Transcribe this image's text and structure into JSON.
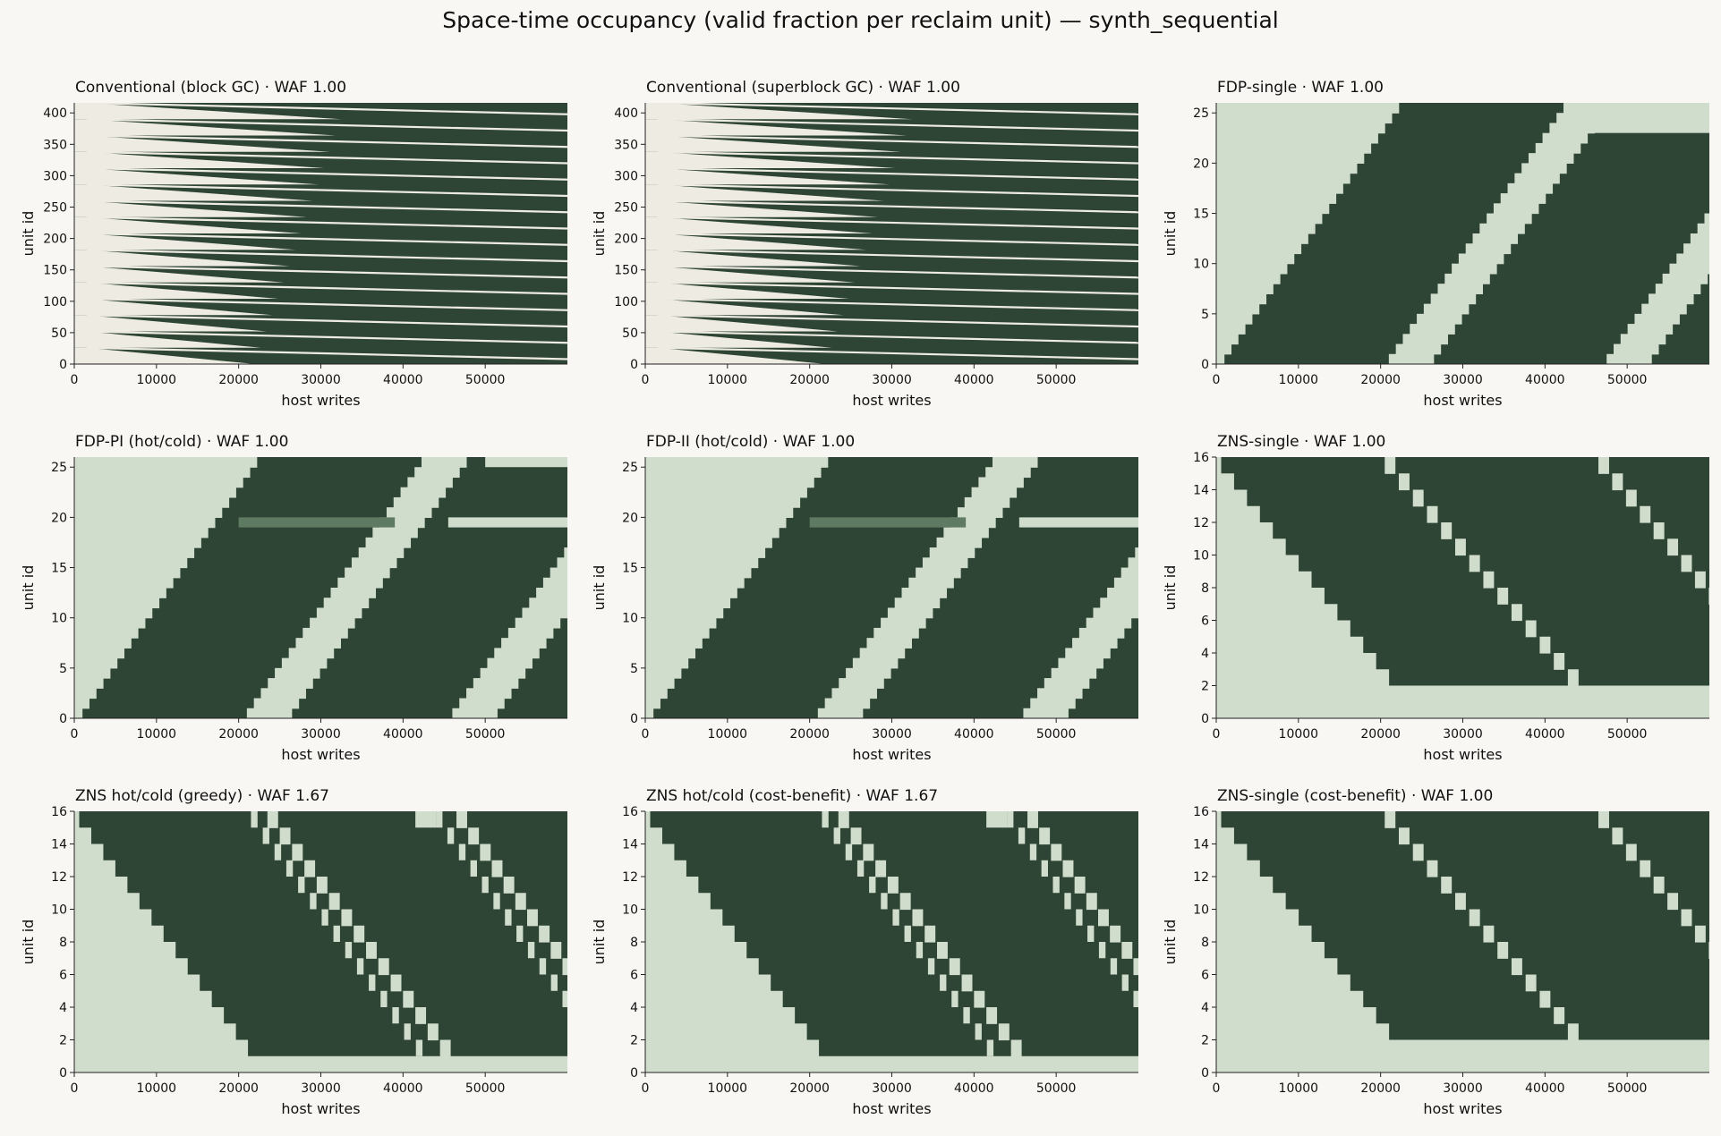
{
  "suptitle": "Space-time occupancy (valid fraction per reclaim unit) — synth_sequential",
  "colors": {
    "background": "#f8f7f3",
    "full": "#2e4535",
    "empty_light": "#d0dccc",
    "empty_cream": "#eeebe2",
    "partial": "#5f7a62"
  },
  "chart_data": [
    {
      "type": "heatmap",
      "title": "Conventional (block GC) · WAF 1.00",
      "pattern": "conventional",
      "xlabel": "host writes",
      "ylabel": "unit id",
      "xlim": [
        0,
        60000
      ],
      "ylim": [
        0,
        416
      ],
      "xticks": [
        0,
        10000,
        20000,
        30000,
        40000,
        50000
      ],
      "yticks": [
        0,
        50,
        100,
        150,
        200,
        250,
        300,
        350,
        400
      ]
    },
    {
      "type": "heatmap",
      "title": "Conventional (superblock GC) · WAF 1.00",
      "pattern": "conventional",
      "xlabel": "host writes",
      "ylabel": "unit id",
      "xlim": [
        0,
        60000
      ],
      "ylim": [
        0,
        416
      ],
      "xticks": [
        0,
        10000,
        20000,
        30000,
        40000,
        50000
      ],
      "yticks": [
        0,
        50,
        100,
        150,
        200,
        250,
        300,
        350,
        400
      ]
    },
    {
      "type": "heatmap",
      "title": "FDP-single · WAF 1.00",
      "pattern": "fdp",
      "xlabel": "host writes",
      "ylabel": "unit id",
      "xlim": [
        0,
        60000
      ],
      "ylim": [
        0,
        26
      ],
      "xticks": [
        0,
        10000,
        20000,
        30000,
        40000,
        50000
      ],
      "yticks": [
        0,
        5,
        10,
        15,
        20,
        25
      ],
      "bands": [
        {
          "x0": 0,
          "x1": 1000,
          "y0": 0,
          "y1": 26
        },
        {
          "x0": 21000,
          "x1": 26500,
          "y0": 0,
          "y1": 26
        },
        {
          "x0": 47500,
          "x1": 53000,
          "y0": 0,
          "y1": 23
        }
      ],
      "top_block": {
        "y0": 23,
        "y1": 26,
        "x_from": 46000
      }
    },
    {
      "type": "heatmap",
      "title": "FDP-PI (hot/cold) · WAF 1.00",
      "pattern": "fdp",
      "xlabel": "host writes",
      "ylabel": "unit id",
      "xlim": [
        0,
        60000
      ],
      "ylim": [
        0,
        26
      ],
      "xticks": [
        0,
        10000,
        20000,
        30000,
        40000,
        50000
      ],
      "yticks": [
        0,
        5,
        10,
        15,
        20,
        25
      ],
      "bands": [
        {
          "x0": 0,
          "x1": 1000,
          "y0": 0,
          "y1": 26
        },
        {
          "x0": 21000,
          "x1": 26500,
          "y0": 0,
          "y1": 26
        },
        {
          "x0": 46000,
          "x1": 51500,
          "y0": 0,
          "y1": 26
        }
      ],
      "top_block": {
        "y0": 25,
        "y1": 26,
        "x_from": 50000
      },
      "stripe": {
        "y0": 19,
        "y1": 20,
        "x0": 20000,
        "x1": 39000,
        "x_light_from": 45500
      }
    },
    {
      "type": "heatmap",
      "title": "FDP-II (hot/cold) · WAF 1.00",
      "pattern": "fdp",
      "xlabel": "host writes",
      "ylabel": "unit id",
      "xlim": [
        0,
        60000
      ],
      "ylim": [
        0,
        26
      ],
      "xticks": [
        0,
        10000,
        20000,
        30000,
        40000,
        50000
      ],
      "yticks": [
        0,
        5,
        10,
        15,
        20,
        25
      ],
      "bands": [
        {
          "x0": 0,
          "x1": 1000,
          "y0": 0,
          "y1": 26
        },
        {
          "x0": 21000,
          "x1": 26500,
          "y0": 0,
          "y1": 26
        },
        {
          "x0": 46000,
          "x1": 51500,
          "y0": 0,
          "y1": 26
        }
      ],
      "stripe": {
        "y0": 19,
        "y1": 20,
        "x0": 20000,
        "x1": 39000,
        "x_light_from": 45500
      }
    },
    {
      "type": "heatmap",
      "title": "ZNS-single · WAF 1.00",
      "pattern": "zns",
      "xlabel": "host writes",
      "ylabel": "unit id",
      "xlim": [
        0,
        60000
      ],
      "ylim": [
        0,
        16
      ],
      "xticks": [
        0,
        10000,
        20000,
        30000,
        40000,
        50000
      ],
      "yticks": [
        0,
        2,
        4,
        6,
        8,
        10,
        12,
        14,
        16
      ],
      "bottom_rows": 2,
      "waves": [
        {
          "x_top": 0,
          "x_bottom": 22000
        },
        {
          "x_top": 20500,
          "x_bottom": 44500
        },
        {
          "x_top": 46500,
          "x_bottom": 70000
        }
      ]
    },
    {
      "type": "heatmap",
      "title": "ZNS hot/cold (greedy) · WAF 1.67",
      "pattern": "zns",
      "xlabel": "host writes",
      "ylabel": "unit id",
      "xlim": [
        0,
        60000
      ],
      "ylim": [
        0,
        16
      ],
      "xticks": [
        0,
        10000,
        20000,
        30000,
        40000,
        50000
      ],
      "yticks": [
        0,
        2,
        4,
        6,
        8,
        10,
        12,
        14,
        16
      ],
      "bottom_rows": 1,
      "waves": [
        {
          "x_top": 0,
          "x_bottom": 22000
        },
        {
          "x_top": 23500,
          "x_bottom": 46000
        },
        {
          "x_top": 46500,
          "x_bottom": 68000
        }
      ],
      "stairs": [
        {
          "x_top": 21500,
          "x_bottom": 43000
        },
        {
          "x_top": 44000,
          "x_bottom": 65000
        }
      ],
      "top_light": [
        {
          "x0": 41500,
          "x1": 44000
        }
      ]
    },
    {
      "type": "heatmap",
      "title": "ZNS hot/cold (cost-benefit) · WAF 1.67",
      "pattern": "zns",
      "xlabel": "host writes",
      "ylabel": "unit id",
      "xlim": [
        0,
        60000
      ],
      "ylim": [
        0,
        16
      ],
      "xticks": [
        0,
        10000,
        20000,
        30000,
        40000,
        50000
      ],
      "yticks": [
        0,
        2,
        4,
        6,
        8,
        10,
        12,
        14,
        16
      ],
      "bottom_rows": 1,
      "waves": [
        {
          "x_top": 0,
          "x_bottom": 22000
        },
        {
          "x_top": 23500,
          "x_bottom": 46000
        },
        {
          "x_top": 46500,
          "x_bottom": 68000
        }
      ],
      "stairs": [
        {
          "x_top": 21500,
          "x_bottom": 43000
        },
        {
          "x_top": 44000,
          "x_bottom": 65000
        }
      ],
      "top_light": [
        {
          "x0": 41500,
          "x1": 44000
        }
      ]
    },
    {
      "type": "heatmap",
      "title": "ZNS-single (cost-benefit) · WAF 1.00",
      "pattern": "zns",
      "xlabel": "host writes",
      "ylabel": "unit id",
      "xlim": [
        0,
        60000
      ],
      "ylim": [
        0,
        16
      ],
      "xticks": [
        0,
        10000,
        20000,
        30000,
        40000,
        50000
      ],
      "yticks": [
        0,
        2,
        4,
        6,
        8,
        10,
        12,
        14,
        16
      ],
      "bottom_rows": 2,
      "waves": [
        {
          "x_top": 0,
          "x_bottom": 22000
        },
        {
          "x_top": 20500,
          "x_bottom": 44500
        },
        {
          "x_top": 46500,
          "x_bottom": 70000
        }
      ]
    }
  ]
}
